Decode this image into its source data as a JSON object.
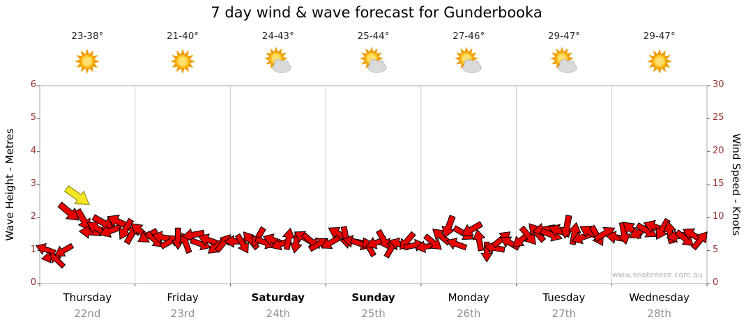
{
  "title": "7 day wind & wave forecast for Gunderbooka",
  "watermark": "www.seabreeze.com.au",
  "days": [
    {
      "name": "Thursday",
      "date": "22nd",
      "temp": "23-38°",
      "icon": "sunny",
      "bold": false
    },
    {
      "name": "Friday",
      "date": "23rd",
      "temp": "21-40°",
      "icon": "sunny",
      "bold": false
    },
    {
      "name": "Saturday",
      "date": "24th",
      "temp": "24-43°",
      "icon": "partly-cloudy",
      "bold": true
    },
    {
      "name": "Sunday",
      "date": "25th",
      "temp": "25-44°",
      "icon": "partly-cloudy",
      "bold": true
    },
    {
      "name": "Monday",
      "date": "26th",
      "temp": "27-46°",
      "icon": "partly-cloudy",
      "bold": false
    },
    {
      "name": "Tuesday",
      "date": "27th",
      "temp": "29-47°",
      "icon": "partly-cloudy",
      "bold": false
    },
    {
      "name": "Wednesday",
      "date": "28th",
      "temp": "29-47°",
      "icon": "sunny",
      "bold": false
    }
  ],
  "axes": {
    "left": {
      "label": "Wave Height - Metres",
      "ticks": [
        0,
        1,
        2,
        3,
        4,
        5,
        6
      ]
    },
    "right": {
      "label": "Wind Speed - Knots",
      "ticks": [
        0,
        5,
        10,
        15,
        20,
        25,
        30
      ]
    }
  },
  "colors": {
    "arrow": "#e60000",
    "arrow_outline": "#000000",
    "highlight_arrow": "#f5e625",
    "highlight_outline": "#857a00",
    "axis_text": "#993333",
    "day_text": "#000000",
    "date_text": "#919191",
    "grid": "#cccccc",
    "border": "#aaaaaa",
    "tick": "#555555",
    "watermark": "#b5b5b5"
  },
  "chart_data": {
    "type": "scatter",
    "subtype": "wind-direction-arrows",
    "title": "7 day wind & wave forecast for Gunderbooka",
    "x_categories": [
      "Thursday 22nd",
      "Friday 23rd",
      "Saturday 24th",
      "Sunday 25th",
      "Monday 26th",
      "Tuesday 27th",
      "Wednesday 28th"
    ],
    "temperatures_c": [
      "23-38°",
      "21-40°",
      "24-43°",
      "25-44°",
      "27-46°",
      "29-47°",
      "29-47°"
    ],
    "conditions": [
      "sunny",
      "sunny",
      "partly-cloudy",
      "partly-cloudy",
      "partly-cloudy",
      "partly-cloudy",
      "sunny"
    ],
    "y_left": {
      "label": "Wave Height - Metres",
      "range": [
        0,
        6
      ]
    },
    "y_right": {
      "label": "Wind Speed - Knots",
      "range": [
        0,
        30
      ]
    },
    "x_range": [
      0,
      7
    ],
    "points_format": [
      "day_position_0_to_7",
      "wind_knots",
      "direction_deg",
      "highlight_flag"
    ],
    "points": [
      [
        0.06,
        5.2,
        200
      ],
      [
        0.12,
        4.0,
        170
      ],
      [
        0.18,
        3.6,
        225
      ],
      [
        0.25,
        5.0,
        150
      ],
      [
        0.31,
        10.8,
        40
      ],
      [
        0.4,
        13.2,
        35,
        "y"
      ],
      [
        0.46,
        9.6,
        60
      ],
      [
        0.53,
        7.8,
        185
      ],
      [
        0.6,
        8.4,
        210
      ],
      [
        0.67,
        9.2,
        30
      ],
      [
        0.74,
        8.0,
        160
      ],
      [
        0.82,
        9.4,
        205
      ],
      [
        0.9,
        8.2,
        120
      ],
      [
        0.97,
        7.6,
        300
      ],
      [
        1.05,
        8.0,
        220
      ],
      [
        1.13,
        7.2,
        150
      ],
      [
        1.21,
        6.6,
        40
      ],
      [
        1.29,
        7.0,
        190
      ],
      [
        1.37,
        6.4,
        330
      ],
      [
        1.45,
        6.8,
        90
      ],
      [
        1.53,
        6.2,
        250
      ],
      [
        1.61,
        7.4,
        170
      ],
      [
        1.69,
        6.0,
        20
      ],
      [
        1.77,
        6.6,
        200
      ],
      [
        1.85,
        5.6,
        140
      ],
      [
        1.93,
        6.2,
        310
      ],
      [
        2.05,
        6.4,
        180
      ],
      [
        2.13,
        6.0,
        60
      ],
      [
        2.21,
        6.6,
        230
      ],
      [
        2.29,
        7.0,
        120
      ],
      [
        2.37,
        6.2,
        20
      ],
      [
        2.45,
        6.6,
        200
      ],
      [
        2.53,
        6.0,
        160
      ],
      [
        2.61,
        6.8,
        280
      ],
      [
        2.69,
        6.2,
        100
      ],
      [
        2.77,
        7.0,
        210
      ],
      [
        2.85,
        6.4,
        40
      ],
      [
        2.93,
        6.0,
        330
      ],
      [
        3.05,
        6.2,
        150
      ],
      [
        3.13,
        7.6,
        210
      ],
      [
        3.21,
        7.0,
        80
      ],
      [
        3.29,
        6.4,
        190
      ],
      [
        3.37,
        6.0,
        20
      ],
      [
        3.45,
        5.6,
        240
      ],
      [
        3.53,
        6.2,
        160
      ],
      [
        3.61,
        6.6,
        60
      ],
      [
        3.69,
        5.4,
        300
      ],
      [
        3.77,
        6.0,
        200
      ],
      [
        3.85,
        6.4,
        130
      ],
      [
        3.93,
        5.8,
        350
      ],
      [
        4.05,
        5.6,
        170
      ],
      [
        4.13,
        6.2,
        40
      ],
      [
        4.21,
        7.2,
        220
      ],
      [
        4.29,
        8.6,
        110
      ],
      [
        4.37,
        6.0,
        200
      ],
      [
        4.45,
        7.6,
        30
      ],
      [
        4.53,
        8.2,
        150
      ],
      [
        4.61,
        6.6,
        260
      ],
      [
        4.69,
        4.8,
        90
      ],
      [
        4.77,
        5.4,
        190
      ],
      [
        4.85,
        6.8,
        320
      ],
      [
        4.93,
        6.2,
        210
      ],
      [
        5.05,
        6.6,
        140
      ],
      [
        5.13,
        7.2,
        50
      ],
      [
        5.21,
        7.8,
        230
      ],
      [
        5.29,
        8.2,
        170
      ],
      [
        5.37,
        7.4,
        20
      ],
      [
        5.45,
        8.0,
        200
      ],
      [
        5.53,
        8.6,
        100
      ],
      [
        5.61,
        7.6,
        280
      ],
      [
        5.69,
        7.0,
        160
      ],
      [
        5.77,
        7.8,
        210
      ],
      [
        5.85,
        7.2,
        60
      ],
      [
        5.93,
        7.6,
        330
      ],
      [
        6.05,
        7.0,
        190
      ],
      [
        6.13,
        7.6,
        80
      ],
      [
        6.21,
        8.2,
        220
      ],
      [
        6.29,
        7.8,
        150
      ],
      [
        6.37,
        8.0,
        30
      ],
      [
        6.45,
        8.6,
        200
      ],
      [
        6.53,
        8.2,
        120
      ],
      [
        6.61,
        7.8,
        260
      ],
      [
        6.69,
        7.2,
        170
      ],
      [
        6.77,
        6.8,
        40
      ],
      [
        6.85,
        7.4,
        210
      ],
      [
        6.93,
        6.6,
        310
      ]
    ]
  }
}
